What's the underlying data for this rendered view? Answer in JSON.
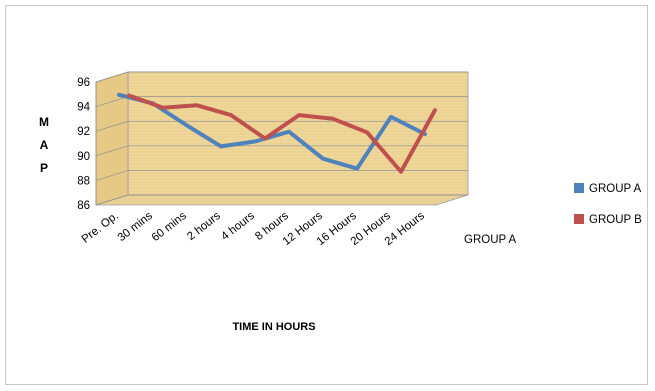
{
  "chart_data": {
    "type": "line",
    "title": "",
    "xlabel": "TIME IN HOURS",
    "ylabel": "M A P",
    "ylabel_letters": [
      "M",
      "A",
      "P"
    ],
    "ylim": [
      86,
      96
    ],
    "yticks": [
      86,
      88,
      90,
      92,
      94,
      96
    ],
    "grid": true,
    "legend_position": "right",
    "depth_axis_label": "GROUP A",
    "categories": [
      "Pre. Op.",
      "30 mins",
      "60 mins",
      "2 hours",
      "4 hours",
      "8 hours",
      "12 Hours",
      "16 Hours",
      "20 Hours",
      "24 Hours"
    ],
    "series": [
      {
        "name": "GROUP A",
        "color": "#4f81bd",
        "values": [
          94.8,
          94.1,
          92.3,
          90.6,
          91.0,
          91.8,
          89.6,
          88.8,
          93.0,
          91.6
        ]
      },
      {
        "name": "GROUP B",
        "color": "#c0504d",
        "values": [
          94.5,
          93.5,
          93.7,
          92.9,
          91.0,
          92.9,
          92.6,
          91.5,
          88.3,
          93.3
        ]
      }
    ],
    "wall_color": "#f0d89c"
  }
}
